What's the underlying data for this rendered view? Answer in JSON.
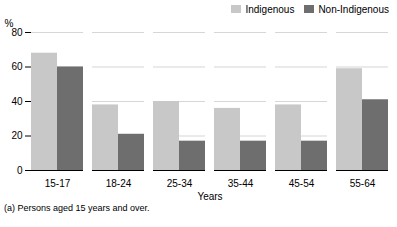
{
  "chart_data": {
    "type": "bar",
    "categories": [
      "15-17",
      "18-24",
      "25-34",
      "35-44",
      "45-54",
      "55-64"
    ],
    "series": [
      {
        "name": "Indigenous",
        "color": "#c8c8c8",
        "values": [
          68,
          38,
          40,
          36,
          38,
          59
        ]
      },
      {
        "name": "Non-Indigenous",
        "color": "#6e6e6e",
        "values": [
          60,
          21,
          17,
          17,
          17,
          41
        ]
      }
    ],
    "xlabel": "Years",
    "ylabel": "%",
    "ylim": [
      0,
      80
    ],
    "yticks": [
      0,
      20,
      40,
      60,
      80
    ],
    "grid": true,
    "legend": "upper right",
    "annotations": [
      "(a) Persons aged 15 years and over."
    ]
  }
}
